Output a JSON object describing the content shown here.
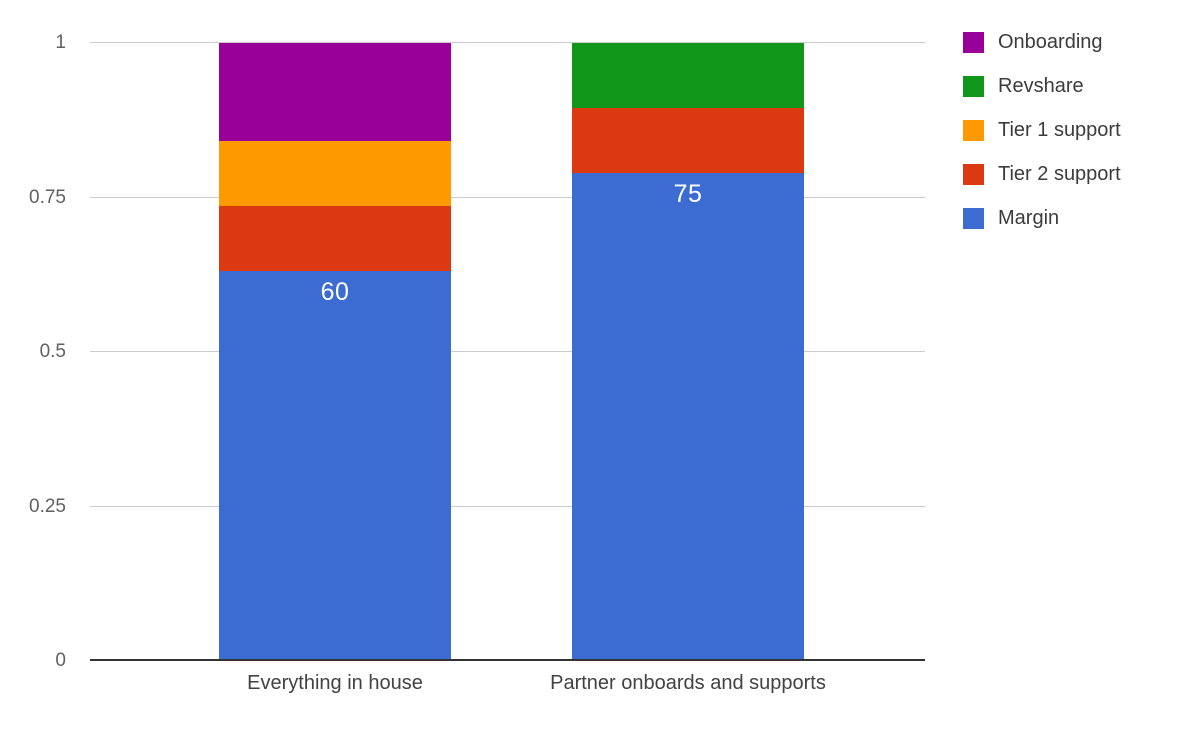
{
  "chart_data": {
    "type": "bar",
    "variant": "stacked-100-percent-column",
    "normalized": true,
    "categories": [
      "Everything in house",
      "Partner onboards and supports"
    ],
    "series": [
      {
        "name": "Onboarding",
        "color": "#990099",
        "values": [
          15,
          0
        ]
      },
      {
        "name": "Revshare",
        "color": "#109618",
        "values": [
          0,
          10
        ]
      },
      {
        "name": "Tier 1 support",
        "color": "#ff9900",
        "values": [
          10,
          0
        ]
      },
      {
        "name": "Tier 2 support",
        "color": "#dc3912",
        "values": [
          10,
          10
        ]
      },
      {
        "name": "Margin",
        "color": "#3c6cd2",
        "values": [
          60,
          75
        ]
      }
    ],
    "stack_order": "reverse-of-legend",
    "data_labels": {
      "series": "Margin",
      "values": [
        "60",
        "75"
      ],
      "color": "#ffffff"
    },
    "y_ticks": [
      {
        "label": "0",
        "value": 0
      },
      {
        "label": "0.25",
        "value": 0.25
      },
      {
        "label": "0.5",
        "value": 0.5
      },
      {
        "label": "0.75",
        "value": 0.75
      },
      {
        "label": "1",
        "value": 1
      }
    ],
    "ylim": [
      0,
      1
    ],
    "grid": true,
    "legend_position": "right",
    "axis_colors": {
      "gridline": "#cccccc",
      "baseline": "#333333",
      "tick_text": "#616161",
      "category_text": "#424242",
      "legend_text": "#3c3c3c"
    }
  }
}
